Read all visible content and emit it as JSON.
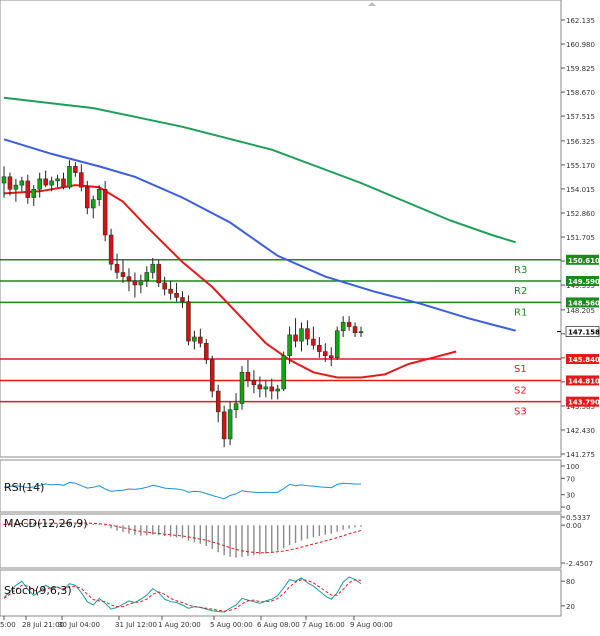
{
  "chart_data": {
    "type": "candlestick",
    "price_axis": {
      "ticks": [
        "162.135",
        "160.980",
        "159.825",
        "158.670",
        "157.515",
        "156.325",
        "155.170",
        "154.015",
        "152.860",
        "151.705",
        "150.550",
        "149.395",
        "148.205",
        "147.050",
        "145.895",
        "144.740",
        "143.585",
        "142.430",
        "141.275"
      ],
      "range": [
        141.275,
        162.135
      ]
    },
    "time_axis": {
      "ticks": [
        "5:00",
        "28 Jul 21:00",
        "30 Jul 04:00",
        "31 Jul 12:00",
        "1 Aug 20:00",
        "5 Aug 00:00",
        "6 Aug 08:00",
        "7 Aug 16:00",
        "9 Aug 00:00"
      ]
    },
    "current_price": "147.158",
    "levels": [
      {
        "name": "R3",
        "value": "150.610",
        "color": "#1a8a1a"
      },
      {
        "name": "R2",
        "value": "149.590",
        "color": "#1a8a1a"
      },
      {
        "name": "R1",
        "value": "148.560",
        "color": "#1a8a1a"
      },
      {
        "name": "S1",
        "value": "145.840",
        "color": "#e31a1a"
      },
      {
        "name": "S2",
        "value": "144.810",
        "color": "#e31a1a"
      },
      {
        "name": "S3",
        "value": "143.790",
        "color": "#e31a1a"
      }
    ],
    "candles": [
      [
        154.3,
        155.1,
        153.6,
        154.6
      ],
      [
        154.6,
        154.8,
        153.7,
        154.0
      ],
      [
        154.0,
        154.5,
        153.4,
        154.2
      ],
      [
        154.2,
        154.6,
        153.9,
        154.4
      ],
      [
        154.4,
        154.7,
        153.3,
        153.6
      ],
      [
        153.6,
        154.2,
        153.2,
        154.0
      ],
      [
        154.0,
        154.8,
        153.6,
        154.5
      ],
      [
        154.5,
        154.9,
        154.1,
        154.2
      ],
      [
        154.2,
        154.6,
        153.9,
        154.4
      ],
      [
        154.4,
        154.7,
        154.1,
        154.5
      ],
      [
        154.5,
        154.8,
        154.0,
        154.1
      ],
      [
        154.1,
        155.4,
        154.0,
        155.1
      ],
      [
        155.1,
        155.3,
        154.6,
        154.8
      ],
      [
        154.8,
        155.2,
        153.9,
        154.1
      ],
      [
        154.1,
        154.4,
        152.8,
        153.1
      ],
      [
        153.1,
        153.7,
        152.6,
        153.5
      ],
      [
        153.5,
        154.2,
        153.2,
        154.0
      ],
      [
        154.0,
        154.4,
        151.5,
        151.8
      ],
      [
        151.8,
        152.1,
        150.1,
        150.4
      ],
      [
        150.4,
        150.9,
        149.7,
        150.0
      ],
      [
        150.0,
        150.6,
        149.5,
        149.8
      ],
      [
        149.8,
        150.2,
        149.1,
        149.6
      ],
      [
        149.6,
        150.0,
        148.8,
        149.4
      ],
      [
        149.4,
        149.9,
        149.0,
        149.6
      ],
      [
        149.6,
        150.3,
        149.3,
        150.0
      ],
      [
        150.0,
        150.7,
        149.7,
        150.4
      ],
      [
        150.4,
        150.6,
        149.3,
        149.5
      ],
      [
        149.5,
        149.8,
        148.9,
        149.2
      ],
      [
        149.2,
        149.6,
        148.7,
        149.0
      ],
      [
        149.0,
        149.5,
        148.6,
        148.8
      ],
      [
        148.8,
        149.1,
        148.3,
        148.6
      ],
      [
        148.6,
        148.9,
        146.5,
        146.7
      ],
      [
        146.7,
        147.2,
        146.3,
        146.9
      ],
      [
        146.9,
        147.3,
        146.4,
        146.6
      ],
      [
        146.6,
        146.8,
        145.6,
        145.8
      ],
      [
        145.8,
        146.0,
        144.0,
        144.3
      ],
      [
        144.3,
        144.6,
        142.8,
        143.3
      ],
      [
        143.3,
        143.6,
        141.6,
        142.0
      ],
      [
        142.0,
        143.8,
        141.7,
        143.4
      ],
      [
        143.4,
        144.2,
        143.0,
        143.7
      ],
      [
        143.7,
        145.5,
        143.4,
        145.2
      ],
      [
        145.2,
        145.8,
        144.5,
        144.8
      ],
      [
        144.8,
        145.3,
        144.2,
        144.6
      ],
      [
        144.6,
        145.0,
        144.0,
        144.4
      ],
      [
        144.4,
        144.8,
        144.0,
        144.5
      ],
      [
        144.5,
        144.9,
        143.9,
        144.3
      ],
      [
        144.3,
        144.6,
        143.9,
        144.4
      ],
      [
        144.4,
        146.2,
        144.3,
        146.0
      ],
      [
        146.0,
        147.4,
        145.6,
        147.0
      ],
      [
        147.0,
        147.8,
        146.4,
        146.7
      ],
      [
        146.7,
        147.6,
        146.2,
        147.3
      ],
      [
        147.3,
        147.7,
        146.5,
        146.8
      ],
      [
        146.8,
        147.4,
        146.3,
        146.5
      ],
      [
        146.5,
        146.9,
        145.9,
        146.2
      ],
      [
        146.2,
        146.6,
        145.7,
        146.0
      ],
      [
        146.0,
        146.4,
        145.5,
        145.9
      ],
      [
        145.9,
        147.4,
        145.8,
        147.2
      ],
      [
        147.2,
        147.9,
        146.9,
        147.6
      ],
      [
        147.6,
        147.9,
        147.2,
        147.4
      ],
      [
        147.4,
        147.6,
        146.9,
        147.1
      ],
      [
        147.1,
        147.4,
        146.9,
        147.16
      ]
    ],
    "moving_averages": [
      {
        "color": "#1e9e58",
        "points": [
          [
            0,
            158.4
          ],
          [
            15,
            157.9
          ],
          [
            30,
            157.0
          ],
          [
            45,
            155.9
          ],
          [
            60,
            154.3
          ],
          [
            75,
            152.5
          ],
          [
            82,
            151.8
          ],
          [
            86,
            151.45
          ]
        ]
      },
      {
        "color": "#3b5fd9",
        "points": [
          [
            0,
            156.4
          ],
          [
            8,
            155.7
          ],
          [
            16,
            155.1
          ],
          [
            22,
            154.6
          ],
          [
            30,
            153.6
          ],
          [
            38,
            152.4
          ],
          [
            46,
            150.8
          ],
          [
            54,
            149.8
          ],
          [
            62,
            149.1
          ],
          [
            70,
            148.5
          ],
          [
            78,
            147.8
          ],
          [
            82,
            147.5
          ],
          [
            86,
            147.2
          ]
        ]
      },
      {
        "color": "#e31a1a",
        "points": [
          [
            0,
            153.8
          ],
          [
            6,
            153.9
          ],
          [
            12,
            154.2
          ],
          [
            16,
            154.1
          ],
          [
            20,
            153.4
          ],
          [
            24,
            152.2
          ],
          [
            30,
            150.5
          ],
          [
            35,
            149.3
          ],
          [
            40,
            147.8
          ],
          [
            44,
            146.6
          ],
          [
            48,
            145.8
          ],
          [
            52,
            145.2
          ],
          [
            56,
            144.95
          ],
          [
            60,
            144.95
          ],
          [
            64,
            145.1
          ],
          [
            68,
            145.6
          ],
          [
            72,
            145.9
          ],
          [
            76,
            146.2
          ]
        ]
      }
    ],
    "rsi": {
      "title": "RSI(14)",
      "ticks": [
        "100",
        "70",
        "30",
        "0"
      ],
      "range": [
        0,
        100
      ],
      "values": [
        48,
        50,
        52,
        50,
        47,
        49,
        53,
        56,
        54,
        55,
        53,
        60,
        58,
        52,
        46,
        48,
        52,
        44,
        38,
        40,
        41,
        44,
        43,
        45,
        48,
        53,
        50,
        46,
        45,
        44,
        42,
        36,
        38,
        37,
        33,
        28,
        24,
        20,
        28,
        32,
        40,
        37,
        36,
        35,
        36,
        35,
        36,
        45,
        55,
        52,
        54,
        52,
        51,
        49,
        48,
        47,
        55,
        58,
        57,
        56,
        56
      ]
    },
    "macd": {
      "title": "MACD(12,26,9)",
      "ticks": [
        "0.5337",
        "0.00",
        "-2.4507"
      ],
      "range": [
        -2.4507,
        0.5337
      ],
      "histogram": [
        0.1,
        0.12,
        0.14,
        0.15,
        0.13,
        0.12,
        0.13,
        0.14,
        0.13,
        0.12,
        0.12,
        0.15,
        0.15,
        0.12,
        0.08,
        0.06,
        0.05,
        -0.05,
        -0.2,
        -0.35,
        -0.45,
        -0.55,
        -0.62,
        -0.68,
        -0.66,
        -0.62,
        -0.65,
        -0.7,
        -0.75,
        -0.8,
        -0.85,
        -1.0,
        -1.1,
        -1.2,
        -1.35,
        -1.55,
        -1.75,
        -1.95,
        -2.05,
        -2.1,
        -2.05,
        -2.0,
        -1.95,
        -1.9,
        -1.82,
        -1.75,
        -1.65,
        -1.5,
        -1.3,
        -1.15,
        -1.0,
        -0.88,
        -0.78,
        -0.7,
        -0.62,
        -0.55,
        -0.42,
        -0.3,
        -0.22,
        -0.15,
        -0.1
      ],
      "signal": [
        0.05,
        0.08,
        0.1,
        0.12,
        0.13,
        0.13,
        0.13,
        0.13,
        0.13,
        0.13,
        0.13,
        0.13,
        0.14,
        0.14,
        0.13,
        0.12,
        0.1,
        0.06,
        0.0,
        -0.08,
        -0.16,
        -0.24,
        -0.32,
        -0.4,
        -0.46,
        -0.5,
        -0.54,
        -0.58,
        -0.62,
        -0.66,
        -0.7,
        -0.76,
        -0.83,
        -0.9,
        -0.98,
        -1.08,
        -1.2,
        -1.33,
        -1.46,
        -1.57,
        -1.66,
        -1.72,
        -1.76,
        -1.78,
        -1.78,
        -1.76,
        -1.72,
        -1.67,
        -1.6,
        -1.52,
        -1.42,
        -1.32,
        -1.22,
        -1.12,
        -1.02,
        -0.92,
        -0.8,
        -0.68,
        -0.56,
        -0.44,
        -0.34
      ]
    },
    "stoch": {
      "title": "Stoch(9,6,3)",
      "ticks": [
        "80",
        "20"
      ],
      "range": [
        0,
        100
      ],
      "main": [
        40,
        55,
        70,
        80,
        60,
        45,
        55,
        70,
        62,
        66,
        58,
        74,
        70,
        52,
        30,
        22,
        38,
        26,
        12,
        16,
        24,
        32,
        28,
        36,
        46,
        62,
        52,
        36,
        30,
        28,
        22,
        14,
        18,
        16,
        12,
        8,
        6,
        5,
        14,
        22,
        38,
        34,
        30,
        26,
        32,
        36,
        45,
        64,
        84,
        80,
        88,
        76,
        68,
        56,
        44,
        36,
        52,
        78,
        90,
        84,
        74
      ],
      "signal": [
        38,
        48,
        60,
        70,
        68,
        58,
        55,
        62,
        64,
        64,
        62,
        66,
        68,
        62,
        48,
        35,
        32,
        30,
        22,
        18,
        18,
        24,
        28,
        30,
        36,
        48,
        54,
        48,
        38,
        32,
        28,
        22,
        18,
        16,
        14,
        12,
        9,
        7,
        9,
        14,
        25,
        32,
        34,
        30,
        30,
        32,
        38,
        50,
        66,
        78,
        84,
        82,
        76,
        66,
        56,
        46,
        46,
        60,
        76,
        84,
        82
      ]
    }
  }
}
